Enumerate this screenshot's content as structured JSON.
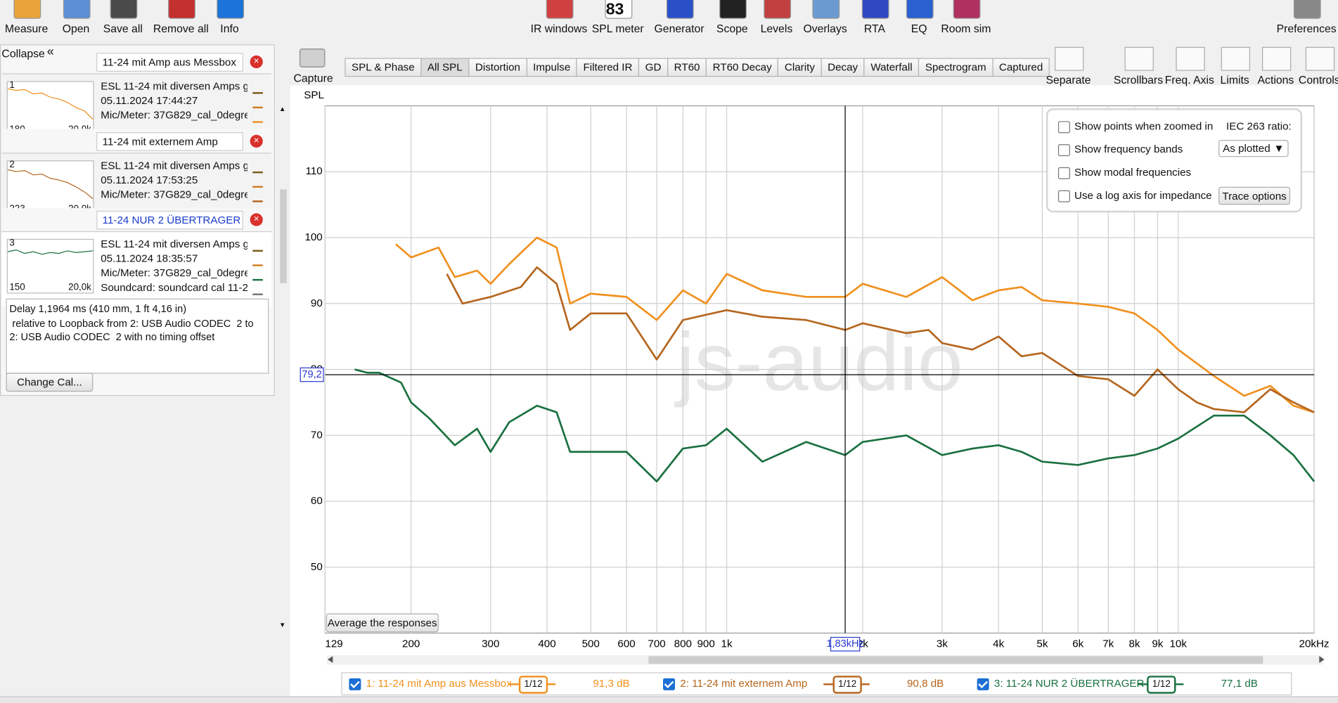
{
  "toolbar": {
    "left": [
      "Measure",
      "Open",
      "Save all",
      "Remove all",
      "Info"
    ],
    "center": [
      "IR windows",
      "SPL meter",
      "Generator",
      "Scope",
      "Levels",
      "Overlays",
      "RTA",
      "EQ",
      "Room sim"
    ],
    "right": [
      "Preferences"
    ],
    "spl_meter_reading": "83"
  },
  "sidebar": {
    "collapse": "Collapse",
    "measurements": [
      {
        "name": "11-24 mit Amp aus Messbox",
        "lines": [
          "ESL 11-24 mit diversen Amps g",
          "05.11.2024 17:44:27",
          "Mic/Meter: 37G829_cal_0degre"
        ],
        "index": "1",
        "thumb_start": "180",
        "thumb_end": "20,0k"
      },
      {
        "name": "11-24 mit externem Amp",
        "lines": [
          "ESL 11-24 mit diversen Amps g",
          "05.11.2024 17:53:25",
          "Mic/Meter: 37G829_cal_0degre"
        ],
        "index": "2",
        "thumb_start": "223",
        "thumb_end": "20,0k"
      },
      {
        "name": "11-24 NUR 2 ÜBERTRAGER",
        "lines": [
          "ESL 11-24 mit diversen Amps g",
          "05.11.2024 18:35:57",
          "Mic/Meter: 37G829_cal_0degre",
          "Soundcard: soundcard cal 11-2"
        ],
        "index": "3",
        "thumb_start": "150",
        "thumb_end": "20,0k"
      }
    ],
    "selected_measurement": 2,
    "delay_info": [
      "Delay 1,1964 ms (410 mm, 1 ft 4,16 in)",
      " relative to Loopback from 2: USB Audio CODEC  2 to",
      "2: USB Audio CODEC  2 with no timing offset"
    ],
    "change_cal": "Change Cal..."
  },
  "graph": {
    "capture": "Capture",
    "tabs": [
      "SPL & Phase",
      "All SPL",
      "Distortion",
      "Impulse",
      "Filtered IR",
      "GD",
      "RT60",
      "RT60 Decay",
      "Clarity",
      "Decay",
      "Waterfall",
      "Spectrogram",
      "Captured"
    ],
    "selected_tab": 1,
    "tools": [
      "Separate",
      "Scrollbars",
      "Freq. Axis",
      "Limits",
      "Actions",
      "Controls"
    ],
    "options": {
      "checkboxes": [
        "Show points when zoomed in",
        "Show frequency bands",
        "Show modal frequencies",
        "Use a log axis for impedance"
      ],
      "iec_label": "IEC 263 ratio:",
      "iec_value": "As plotted",
      "trace_options": "Trace options"
    },
    "average_button": "Average the responses",
    "watermark": "js-audio"
  },
  "chart_data": {
    "type": "line",
    "ylabel": "SPL",
    "xscale": "log",
    "xlim": [
      129,
      20000
    ],
    "ylim": [
      40,
      120
    ],
    "xticks": [
      129,
      200,
      300,
      400,
      500,
      600,
      700,
      800,
      900,
      {
        "value": 1000,
        "label": "1k"
      },
      {
        "value": 2000,
        "label": "2k"
      },
      {
        "value": 3000,
        "label": "3k"
      },
      {
        "value": 4000,
        "label": "4k"
      },
      {
        "value": 5000,
        "label": "5k"
      },
      {
        "value": 6000,
        "label": "6k"
      },
      {
        "value": 7000,
        "label": "7k"
      },
      {
        "value": 8000,
        "label": "8k"
      },
      {
        "value": 9000,
        "label": "9k"
      },
      {
        "value": 10000,
        "label": "10k"
      },
      {
        "value": 20000,
        "label": "20kHz"
      }
    ],
    "yticks": [
      50,
      60,
      70,
      80,
      90,
      100,
      110
    ],
    "grid": true,
    "cursor": {
      "x": 1830,
      "x_label": "1,83kHz",
      "y": 79.2,
      "y_label": "79,2"
    },
    "series": [
      {
        "name": "1: 11-24 mit Amp aus Messbox",
        "color": "#f0901e",
        "smoothing": "1/12",
        "level": "91,3 dB",
        "x": [
          185,
          200,
          230,
          250,
          280,
          300,
          330,
          380,
          420,
          450,
          500,
          600,
          700,
          800,
          900,
          1000,
          1200,
          1500,
          1830,
          2000,
          2500,
          3000,
          3500,
          4000,
          4500,
          5000,
          6000,
          7000,
          8000,
          9000,
          10000,
          12000,
          14000,
          16000,
          18000,
          20000
        ],
        "values": [
          99,
          97,
          98.5,
          94,
          95,
          93,
          96,
          100,
          98.5,
          90,
          91.5,
          91,
          87.5,
          92,
          90,
          94.5,
          92,
          91,
          91,
          93,
          91,
          94,
          90.5,
          92,
          92.5,
          90.5,
          90,
          89.5,
          88.5,
          86,
          83,
          79,
          76,
          77.5,
          74.5,
          73.5
        ]
      },
      {
        "name": "2: 11-24 mit externem Amp",
        "color": "#b5651d",
        "smoothing": "1/12",
        "level": "90,8 dB",
        "x": [
          240,
          260,
          300,
          350,
          380,
          420,
          450,
          500,
          600,
          700,
          800,
          1000,
          1200,
          1500,
          1830,
          2000,
          2500,
          2800,
          3000,
          3500,
          4000,
          4500,
          5000,
          6000,
          7000,
          8000,
          9000,
          10000,
          11000,
          12000,
          14000,
          16000,
          18000,
          20000
        ],
        "values": [
          94.5,
          90,
          91,
          92.5,
          95.5,
          93,
          86,
          88.5,
          88.5,
          81.5,
          87.5,
          89,
          88,
          87.5,
          86,
          87,
          85.5,
          86,
          84,
          83,
          85,
          82,
          82.5,
          79,
          78.5,
          76,
          80,
          77,
          75,
          74,
          73.5,
          77,
          75,
          73.5
        ]
      },
      {
        "name": "3: 11-24 NUR 2 ÜBERTRAGER",
        "color": "#1a7040",
        "smoothing": "1/12",
        "level": "77,1 dB",
        "x": [
          150,
          160,
          170,
          190,
          200,
          220,
          250,
          280,
          300,
          330,
          380,
          420,
          450,
          500,
          600,
          700,
          800,
          900,
          1000,
          1200,
          1500,
          1830,
          2000,
          2500,
          3000,
          3500,
          4000,
          4500,
          5000,
          6000,
          7000,
          8000,
          9000,
          10000,
          12000,
          14000,
          16000,
          18000,
          20000
        ],
        "values": [
          80,
          79.5,
          79.5,
          78,
          75,
          72.5,
          68.5,
          71,
          67.5,
          72,
          74.5,
          73.5,
          67.5,
          67.5,
          67.5,
          63,
          68,
          68.5,
          71,
          66,
          69,
          67,
          69,
          70,
          67,
          68,
          68.5,
          67.5,
          66,
          65.5,
          66.5,
          67,
          68,
          69.5,
          73,
          73,
          70,
          67,
          63
        ]
      }
    ]
  }
}
